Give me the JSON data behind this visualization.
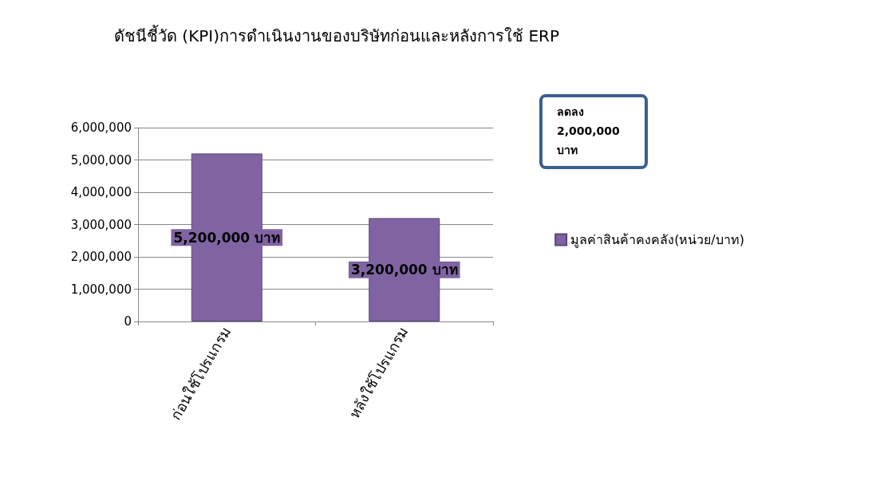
{
  "chart_data": {
    "type": "bar",
    "title": "ดัชนีชี้วัด (KPI)การดำเนินงานของบริษัทก่อนและหลังการใช้ ERP",
    "categories": [
      "ก่อนใช้โปรแกรม",
      "หลังใช้โปรแกรม"
    ],
    "series": [
      {
        "name": "มูลค่าสินค้าคงคลัง(หน่วย/บาท)",
        "color": "#8064a2",
        "values": [
          5200000,
          3200000
        ],
        "value_labels": [
          "5,200,000 บาท",
          "3,200,000 บาท"
        ]
      }
    ],
    "ylim": [
      0,
      6000000
    ],
    "yticks": [
      0,
      {
        "value": 1000000,
        "label": "1,000,000"
      },
      {
        "value": 2000000,
        "label": "2,000,000"
      },
      {
        "value": 3000000,
        "label": "3,000,000"
      },
      {
        "value": 4000000,
        "label": "4,000,000"
      },
      {
        "value": 5000000,
        "label": "5,000,000"
      },
      {
        "value": 6000000,
        "label": "6,000,000"
      }
    ],
    "grid": "y",
    "legend": "right",
    "annotations": [
      "ลดลง\n2,000,000\nบาท"
    ]
  }
}
